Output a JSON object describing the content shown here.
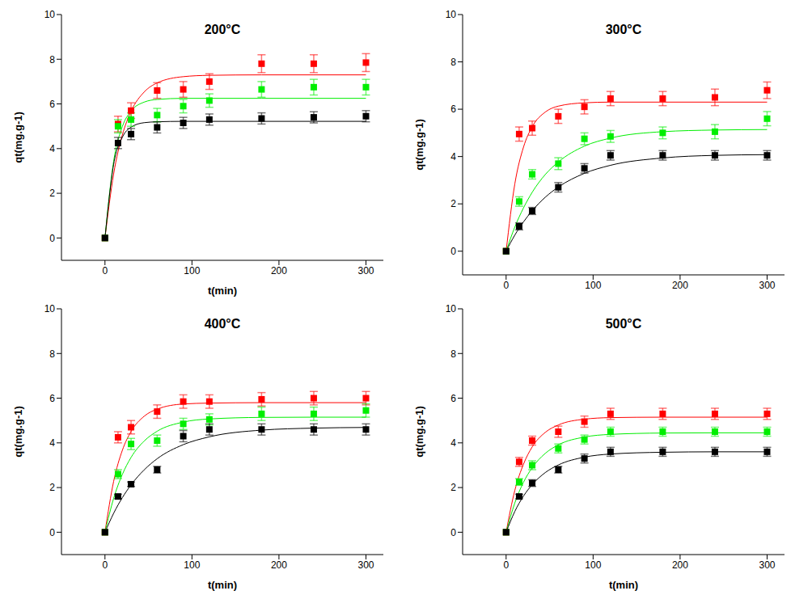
{
  "chart_data": [
    {
      "type": "scatter",
      "title": "200°C",
      "x_label": "t(min)",
      "y_label": "qt(mg.g-1)",
      "xlim": [
        -50,
        320
      ],
      "xticks": [
        0,
        100,
        200,
        300
      ],
      "ylim": [
        -1,
        10
      ],
      "yticks": [
        0,
        2,
        4,
        6,
        8,
        10
      ],
      "marker": "square",
      "x": [
        0,
        15,
        30,
        60,
        90,
        120,
        180,
        240,
        300
      ],
      "fit_x": [
        0,
        10,
        20,
        30,
        45,
        60,
        90,
        120,
        180,
        240,
        300
      ],
      "series": [
        {
          "color": "#ff0000",
          "values": [
            0,
            5.1,
            5.7,
            6.6,
            6.65,
            7.0,
            7.8,
            7.8,
            7.85
          ],
          "errors": [
            0,
            0.35,
            0.35,
            0.35,
            0.35,
            0.35,
            0.4,
            0.4,
            0.4
          ],
          "fit": [
            0,
            2.87,
            4.61,
            5.67,
            6.53,
            6.94,
            7.22,
            7.28,
            7.3,
            7.3,
            7.3
          ]
        },
        {
          "color": "#00ee00",
          "values": [
            0,
            5.0,
            5.3,
            5.5,
            5.9,
            6.15,
            6.65,
            6.75,
            6.75
          ],
          "errors": [
            0,
            0.3,
            0.3,
            0.3,
            0.3,
            0.3,
            0.35,
            0.35,
            0.35
          ],
          "fit": [
            0,
            3.44,
            4.99,
            5.68,
            6.08,
            6.2,
            6.25,
            6.25,
            6.25,
            6.25,
            6.25
          ]
        },
        {
          "color": "#000000",
          "values": [
            0,
            4.25,
            4.65,
            4.95,
            5.15,
            5.3,
            5.35,
            5.4,
            5.45
          ],
          "errors": [
            0,
            0.25,
            0.25,
            0.25,
            0.25,
            0.25,
            0.25,
            0.25,
            0.25
          ],
          "fit": [
            0,
            3.3,
            4.51,
            4.96,
            5.16,
            5.2,
            5.22,
            5.22,
            5.22,
            5.22,
            5.22
          ]
        }
      ]
    },
    {
      "type": "scatter",
      "title": "300°C",
      "y_label": "qt(mg.g-1)",
      "xlim": [
        -50,
        320
      ],
      "xticks": [
        0,
        100,
        200,
        300
      ],
      "ylim": [
        -1,
        10
      ],
      "yticks": [
        0,
        2,
        4,
        6,
        8,
        10
      ],
      "marker": "square",
      "x": [
        0,
        15,
        30,
        60,
        90,
        120,
        180,
        240,
        300
      ],
      "fit_x": [
        0,
        10,
        20,
        30,
        45,
        60,
        90,
        120,
        180,
        240,
        300
      ],
      "series": [
        {
          "color": "#ff0000",
          "values": [
            0,
            4.95,
            5.2,
            5.7,
            6.1,
            6.45,
            6.45,
            6.5,
            6.8
          ],
          "errors": [
            0,
            0.3,
            0.3,
            0.3,
            0.3,
            0.3,
            0.3,
            0.35,
            0.35
          ],
          "fit": [
            0,
            2.84,
            4.4,
            5.26,
            5.88,
            6.13,
            6.27,
            6.3,
            6.3,
            6.3,
            6.3
          ]
        },
        {
          "color": "#00ee00",
          "values": [
            0,
            2.1,
            3.25,
            3.7,
            4.75,
            4.85,
            5.0,
            5.05,
            5.6
          ],
          "errors": [
            0,
            0.2,
            0.2,
            0.25,
            0.25,
            0.25,
            0.25,
            0.3,
            0.3
          ],
          "fit": [
            0,
            1.02,
            1.83,
            2.49,
            3.24,
            3.77,
            4.44,
            4.78,
            5.05,
            5.12,
            5.14
          ]
        },
        {
          "color": "#000000",
          "values": [
            0,
            1.05,
            1.7,
            2.7,
            3.5,
            4.05,
            4.05,
            4.05,
            4.05
          ],
          "errors": [
            0,
            0.15,
            0.15,
            0.2,
            0.2,
            0.2,
            0.2,
            0.2,
            0.2
          ],
          "fit": [
            0,
            0.68,
            1.24,
            1.71,
            2.28,
            2.71,
            3.29,
            3.63,
            3.94,
            4.05,
            4.08
          ]
        }
      ]
    },
    {
      "type": "scatter",
      "title": "400°C",
      "x_label": "t(min)",
      "y_label": "qt(mg.g-1)",
      "xlim": [
        -50,
        320
      ],
      "xticks": [
        0,
        100,
        200,
        300
      ],
      "ylim": [
        -1,
        10
      ],
      "yticks": [
        0,
        2,
        4,
        6,
        8,
        10
      ],
      "marker": "square",
      "x": [
        0,
        15,
        30,
        60,
        90,
        120,
        180,
        240,
        300
      ],
      "fit_x": [
        0,
        10,
        20,
        30,
        45,
        60,
        90,
        120,
        180,
        240,
        300
      ],
      "series": [
        {
          "color": "#ff0000",
          "values": [
            0,
            4.25,
            4.7,
            5.4,
            5.85,
            5.85,
            5.95,
            6.0,
            6.0
          ],
          "errors": [
            0,
            0.25,
            0.3,
            0.3,
            0.3,
            0.3,
            0.3,
            0.3,
            0.3
          ],
          "fit": [
            0,
            2.28,
            3.67,
            4.51,
            5.19,
            5.51,
            5.74,
            5.78,
            5.8,
            5.8,
            5.8
          ]
        },
        {
          "color": "#00ee00",
          "values": [
            0,
            2.6,
            3.95,
            4.1,
            4.85,
            5.05,
            5.3,
            5.3,
            5.45
          ],
          "errors": [
            0,
            0.2,
            0.25,
            0.25,
            0.25,
            0.25,
            0.3,
            0.3,
            0.3
          ],
          "fit": [
            0,
            1.52,
            2.59,
            3.35,
            4.08,
            4.52,
            4.93,
            5.07,
            5.14,
            5.15,
            5.15
          ]
        },
        {
          "color": "#000000",
          "values": [
            0,
            1.6,
            2.15,
            2.8,
            4.3,
            4.6,
            4.6,
            4.6,
            4.6
          ],
          "errors": [
            0,
            0.1,
            0.1,
            0.15,
            0.25,
            0.25,
            0.25,
            0.25,
            0.25
          ],
          "fit": [
            0,
            0.85,
            1.55,
            2.12,
            2.79,
            3.29,
            3.92,
            4.27,
            4.57,
            4.66,
            4.69
          ]
        }
      ]
    },
    {
      "type": "scatter",
      "title": "500°C",
      "x_label": "t(min)",
      "y_label": "qt(mg.g-1)",
      "xlim": [
        -50,
        320
      ],
      "xticks": [
        0,
        100,
        200,
        300
      ],
      "ylim": [
        -1,
        10
      ],
      "yticks": [
        0,
        2,
        4,
        6,
        8,
        10
      ],
      "marker": "square",
      "x": [
        0,
        15,
        30,
        60,
        90,
        120,
        180,
        240,
        300
      ],
      "fit_x": [
        0,
        10,
        20,
        30,
        45,
        60,
        90,
        120,
        180,
        240,
        300
      ],
      "series": [
        {
          "color": "#ff0000",
          "values": [
            0,
            3.15,
            4.1,
            4.5,
            4.95,
            5.3,
            5.3,
            5.3,
            5.3
          ],
          "errors": [
            0,
            0.2,
            0.2,
            0.25,
            0.25,
            0.25,
            0.25,
            0.25,
            0.25
          ],
          "fit": [
            0,
            1.87,
            3.05,
            3.82,
            4.47,
            4.8,
            5.06,
            5.13,
            5.15,
            5.15,
            5.15
          ]
        },
        {
          "color": "#00ee00",
          "values": [
            0,
            2.25,
            3.0,
            3.75,
            4.15,
            4.5,
            4.5,
            4.5,
            4.5
          ],
          "errors": [
            0,
            0.15,
            0.2,
            0.2,
            0.2,
            0.2,
            0.2,
            0.2,
            0.2
          ],
          "fit": [
            0,
            1.31,
            2.24,
            2.89,
            3.53,
            3.91,
            4.26,
            4.38,
            4.44,
            4.45,
            4.45
          ]
        },
        {
          "color": "#000000",
          "values": [
            0,
            1.6,
            2.2,
            2.8,
            3.3,
            3.6,
            3.6,
            3.6,
            3.6
          ],
          "errors": [
            0,
            0.1,
            0.15,
            0.15,
            0.2,
            0.2,
            0.2,
            0.2,
            0.2
          ],
          "fit": [
            0,
            0.93,
            1.62,
            2.13,
            2.67,
            3.01,
            3.36,
            3.5,
            3.58,
            3.6,
            3.6
          ]
        }
      ]
    }
  ]
}
